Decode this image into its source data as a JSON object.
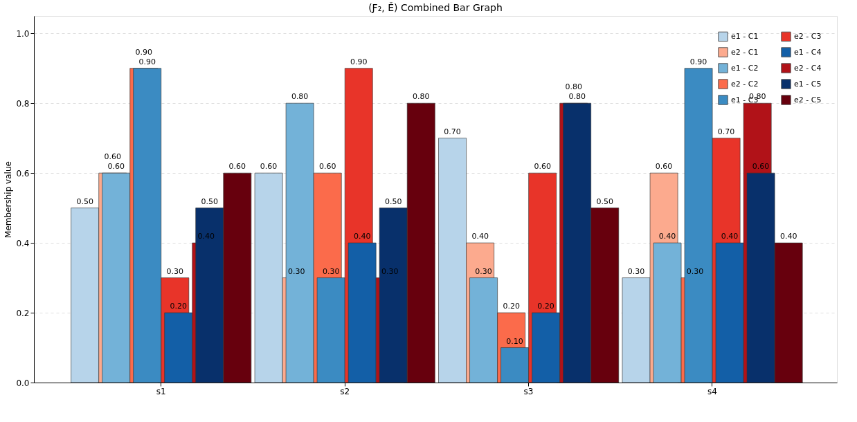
{
  "chart_data": {
    "type": "bar",
    "title": "(Ƒ₂, Ě) Combined Bar Graph",
    "ylabel": "Membership value",
    "categories": [
      "s1",
      "s2",
      "s3",
      "s4"
    ],
    "series": [
      {
        "name": "e1 - C1",
        "color": "#b7d4ea",
        "values": [
          0.5,
          0.6,
          0.7,
          0.3
        ],
        "value_labels": [
          "0.50",
          "0.60",
          "0.70",
          "0.30"
        ]
      },
      {
        "name": "e2 - C1",
        "color": "#fcaa8e",
        "values": [
          0.6,
          0.3,
          0.4,
          0.6
        ],
        "value_labels": [
          "0.60",
          "0.30",
          "0.40",
          "0.60"
        ]
      },
      {
        "name": "e1 - C2",
        "color": "#73b2d8",
        "values": [
          0.6,
          0.8,
          0.3,
          0.4
        ],
        "value_labels": [
          "0.60",
          "0.80",
          "0.30",
          "0.40"
        ]
      },
      {
        "name": "e2 - C2",
        "color": "#fb6b4b",
        "values": [
          0.9,
          0.6,
          0.2,
          0.3
        ],
        "value_labels": [
          "0.90",
          "0.60",
          "0.20",
          "0.30"
        ]
      },
      {
        "name": "e1 - C3",
        "color": "#3b8bc2",
        "values": [
          0.9,
          0.3,
          0.1,
          0.9
        ],
        "value_labels": [
          "0.90",
          "0.30",
          "0.10",
          "0.90"
        ]
      },
      {
        "name": "e2 - C3",
        "color": "#e83429",
        "values": [
          0.3,
          0.9,
          0.6,
          0.7
        ],
        "value_labels": [
          "0.30",
          "0.90",
          "0.60",
          "0.70"
        ]
      },
      {
        "name": "e1 - C4",
        "color": "#135fa7",
        "values": [
          0.2,
          0.4,
          0.2,
          0.4
        ],
        "value_labels": [
          "0.20",
          "0.40",
          "0.20",
          "0.40"
        ]
      },
      {
        "name": "e2 - C4",
        "color": "#b11218",
        "values": [
          0.4,
          0.3,
          0.8,
          0.8
        ],
        "value_labels": [
          "0.40",
          "0.30",
          "0.80",
          "0.80"
        ]
      },
      {
        "name": "e1 - C5",
        "color": "#08306b",
        "values": [
          0.5,
          0.5,
          0.8,
          0.6
        ],
        "value_labels": [
          "0.50",
          "0.50",
          "0.80",
          "0.60"
        ]
      },
      {
        "name": "e2 - C5",
        "color": "#67000d",
        "values": [
          0.6,
          0.8,
          0.5,
          0.4
        ],
        "value_labels": [
          "0.60",
          "0.80",
          "0.50",
          "0.40"
        ]
      }
    ],
    "ylim": [
      0,
      1.05
    ],
    "yticks": [
      {
        "value": 0,
        "label": "0.0"
      },
      0.2,
      0.4,
      0.6,
      0.8,
      {
        "value": 1,
        "label": "1.0"
      }
    ],
    "grid": "y",
    "legend": "top right"
  }
}
